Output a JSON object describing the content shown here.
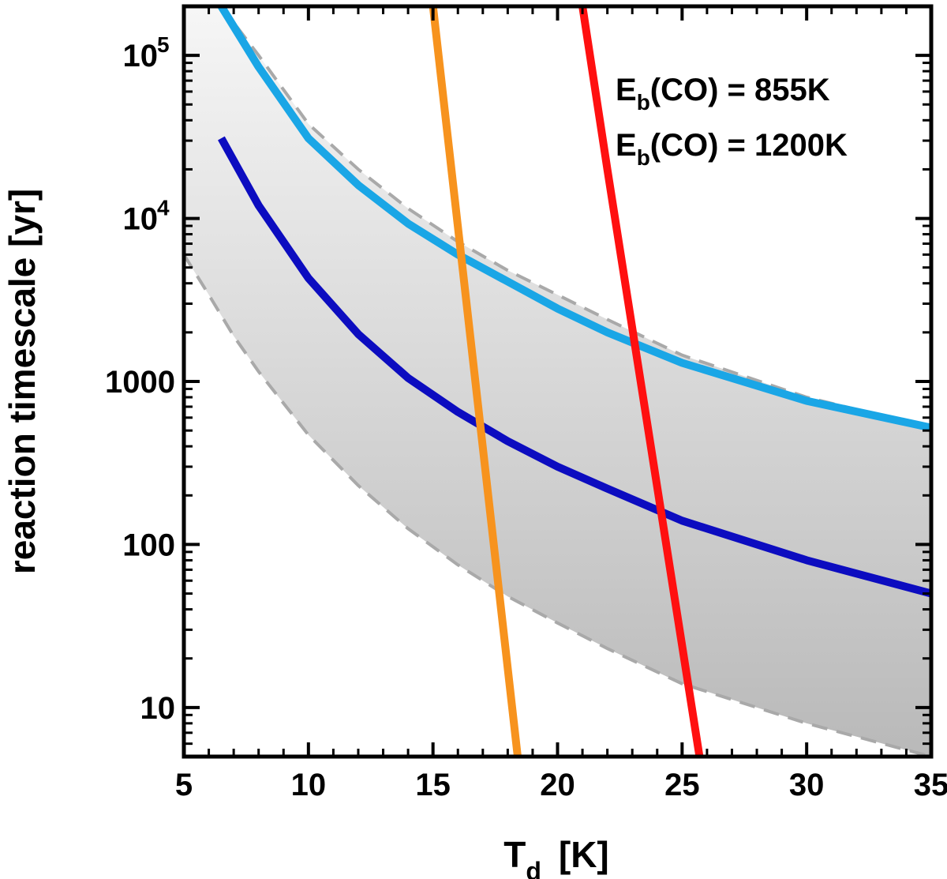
{
  "chart_data": {
    "type": "line",
    "title": "",
    "xlabel": "T",
    "xlabel_sub": "d",
    "xlabel_unit": "[K]",
    "ylabel": "reaction timescale [yr]",
    "xlim": [
      5,
      35
    ],
    "ylim": [
      5,
      200000
    ],
    "yscale": "log",
    "grid": false,
    "x_ticks": [
      5,
      10,
      15,
      20,
      25,
      30,
      35
    ],
    "x_tick_labels": [
      "5",
      "10",
      "15",
      "20",
      "25",
      "30",
      "35"
    ],
    "y_ticks": [
      10,
      100,
      1000,
      10000,
      100000
    ],
    "y_tick_labels": [
      {
        "base": "10",
        "exp": ""
      },
      {
        "base": "100",
        "exp": ""
      },
      {
        "base": "1000",
        "exp": ""
      },
      {
        "base": "10",
        "exp": "4"
      },
      {
        "base": "10",
        "exp": "5"
      }
    ],
    "band": {
      "color_top": "#f6f6f6",
      "color_bottom": "#b9b9b9",
      "edge_color": "#a9a9a9",
      "upper": [
        [
          6.5,
          200000
        ],
        [
          8,
          100000
        ],
        [
          10,
          38000
        ],
        [
          12,
          20000
        ],
        [
          14,
          11500
        ],
        [
          16,
          7200
        ],
        [
          18,
          4800
        ],
        [
          20,
          3400
        ],
        [
          22,
          2400
        ],
        [
          25,
          1450
        ],
        [
          30,
          800
        ],
        [
          35,
          520
        ]
      ],
      "lower": [
        [
          5,
          6000
        ],
        [
          6,
          3400
        ],
        [
          7,
          1900
        ],
        [
          8,
          1150
        ],
        [
          10,
          470
        ],
        [
          12,
          230
        ],
        [
          14,
          125
        ],
        [
          16,
          75
        ],
        [
          18,
          48
        ],
        [
          20,
          33
        ],
        [
          22,
          23
        ],
        [
          25,
          14
        ],
        [
          30,
          8
        ],
        [
          35,
          5
        ]
      ]
    },
    "series": [
      {
        "color": "#1aa6e6",
        "x": [
          6.5,
          8,
          10,
          12,
          14,
          16,
          18,
          20,
          22,
          25,
          30,
          35
        ],
        "y": [
          200000,
          85000,
          31000,
          16000,
          9300,
          6000,
          4100,
          2800,
          2000,
          1300,
          760,
          520
        ]
      },
      {
        "color": "#0c0cc0",
        "x": [
          6.5,
          8,
          10,
          12,
          14,
          16,
          18,
          20,
          22,
          25,
          30,
          35
        ],
        "y": [
          31000,
          12000,
          4300,
          1950,
          1050,
          650,
          430,
          300,
          220,
          140,
          80,
          50
        ]
      },
      {
        "color": "#f7931e",
        "x": [
          15.0,
          18.4
        ],
        "y": [
          200000,
          5
        ]
      },
      {
        "color": "#ff1010",
        "x": [
          21.0,
          22.0,
          25.7
        ],
        "y": [
          200000,
          20000,
          5
        ]
      }
    ],
    "annotations": [
      {
        "base": "E",
        "sub": "b",
        "rest": "(CO) = 855K",
        "color": "#f7931e"
      },
      {
        "base": "E",
        "sub": "b",
        "rest": "(CO) = 1200K",
        "color": "#ff1010"
      }
    ]
  }
}
